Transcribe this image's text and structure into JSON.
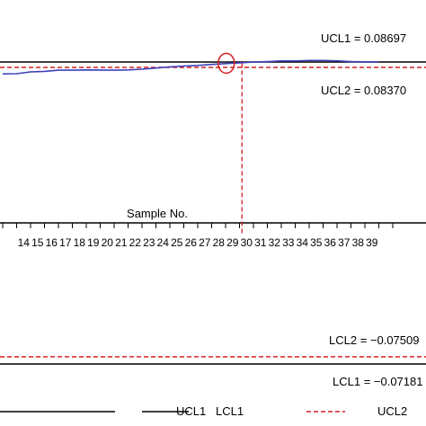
{
  "chart_data": {
    "type": "line",
    "xlabel": "Sample No.",
    "x_ticks": [
      14,
      15,
      16,
      17,
      18,
      19,
      20,
      21,
      22,
      23,
      24,
      25,
      26,
      27,
      28,
      29,
      30,
      31,
      32,
      33,
      34,
      35,
      36,
      37,
      38,
      39
    ],
    "series": [
      {
        "name": "",
        "x": [
          13,
          14,
          15,
          16,
          17,
          18,
          19,
          20,
          21,
          22,
          23,
          24,
          25,
          26,
          27,
          28,
          29,
          30,
          31,
          32,
          33,
          34,
          35,
          36,
          37,
          38,
          39,
          40
        ],
        "y": [
          0.0798,
          0.0799,
          0.081,
          0.0813,
          0.082,
          0.082,
          0.0822,
          0.0821,
          0.082,
          0.0822,
          0.0826,
          0.0833,
          0.084,
          0.0845,
          0.0849,
          0.0855,
          0.086,
          0.0865,
          0.0869,
          0.0872,
          0.0876,
          0.0876,
          0.0879,
          0.0879,
          0.0877,
          0.0872,
          0.0871,
          0.0869
        ],
        "color": "#3f3fb8"
      }
    ],
    "reference_lines": [
      {
        "key": "UCL1",
        "value": 0.08697,
        "label": "UCL1 = 0.08697",
        "style": "solid",
        "color": "#000000"
      },
      {
        "key": "UCL2",
        "value": 0.0837,
        "label": "UCL2 = 0.08370",
        "style": "dashed",
        "color": "#d42020"
      },
      {
        "key": "LCL2",
        "value": -0.07509,
        "label": "LCL2 = −0.07509",
        "style": "dashed",
        "color": "#d42020"
      },
      {
        "key": "LCL1",
        "value": -0.07181,
        "label": "LCL1 = −0.07181",
        "style": "solid",
        "color": "#000000"
      }
    ],
    "crossing": {
      "x": 29.05,
      "value": 0.0862,
      "color": "#d42020"
    },
    "legend": {
      "position": "bottom",
      "items": [
        {
          "label": "UCL1",
          "style": "solid",
          "color": "#000000"
        },
        {
          "label": "LCL1",
          "style": "solid",
          "color": "#000000"
        },
        {
          "label": "UCL2",
          "style": "dashed",
          "color": "#d42020"
        }
      ]
    },
    "grid": false
  }
}
